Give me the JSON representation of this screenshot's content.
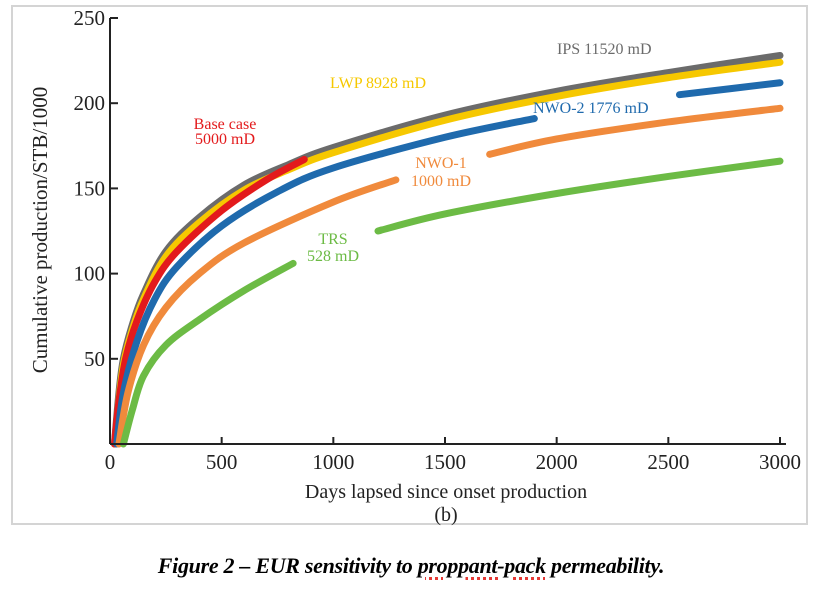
{
  "chart_data": {
    "type": "line",
    "subtitle": "(b)",
    "xlabel": "Days lapsed since onset production",
    "ylabel": "Cumulative production/STB/1000",
    "xlim": [
      0,
      3000
    ],
    "ylim": [
      0,
      250
    ],
    "xticks": [
      "0",
      "500",
      "1000",
      "1500",
      "2000",
      "2500",
      "3000"
    ],
    "yticks": [
      "50",
      "100",
      "150",
      "200",
      "250"
    ],
    "grid": false,
    "legend": "inline labels",
    "series": [
      {
        "name": "IPS 11520 mD",
        "color": "#6b6b6b",
        "segments": [
          [
            [
              20,
              0
            ],
            [
              40,
              30
            ],
            [
              60,
              50
            ],
            [
              100,
              70
            ],
            [
              150,
              88
            ],
            [
              250,
              113
            ],
            [
              400,
              133
            ],
            [
              600,
              152
            ],
            [
              800,
              164
            ],
            [
              1000,
              174
            ],
            [
              1500,
              193
            ],
            [
              2000,
              207
            ],
            [
              2500,
              218
            ],
            [
              3000,
              228
            ]
          ]
        ]
      },
      {
        "name": "LWP 8928 mD",
        "color": "#f6c800",
        "segments": [
          [
            [
              22,
              0
            ],
            [
              42,
              28
            ],
            [
              62,
              48
            ],
            [
              100,
              67
            ],
            [
              150,
              85
            ],
            [
              250,
              110
            ],
            [
              400,
              130
            ],
            [
              600,
              149
            ],
            [
              800,
              161
            ],
            [
              1000,
              171
            ],
            [
              1500,
              190
            ],
            [
              2000,
              204
            ],
            [
              2500,
              215
            ],
            [
              3000,
              224
            ]
          ]
        ]
      },
      {
        "name": "Base case 5000 mD",
        "color": "#e31a1c",
        "segments": [
          [
            [
              20,
              0
            ],
            [
              40,
              25
            ],
            [
              70,
              50
            ],
            [
              120,
              72
            ],
            [
              200,
              95
            ],
            [
              300,
              113
            ],
            [
              500,
              137
            ],
            [
              700,
              155
            ],
            [
              870,
              167
            ]
          ]
        ]
      },
      {
        "name": "NWO-2 1776 mD",
        "color": "#1f6aad",
        "segments": [
          [
            [
              30,
              0
            ],
            [
              60,
              30
            ],
            [
              120,
              60
            ],
            [
              200,
              85
            ],
            [
              300,
              104
            ],
            [
              500,
              128
            ],
            [
              750,
              148
            ],
            [
              1000,
              162
            ],
            [
              1500,
              180
            ],
            [
              1900,
              191
            ]
          ],
          [
            [
              2550,
              205
            ],
            [
              3000,
              212
            ]
          ]
        ]
      },
      {
        "name": "NWO-1 1000 mD",
        "color": "#f08a3c",
        "segments": [
          [
            [
              40,
              0
            ],
            [
              80,
              30
            ],
            [
              150,
              58
            ],
            [
              250,
              80
            ],
            [
              400,
              100
            ],
            [
              600,
              118
            ],
            [
              1000,
              142
            ],
            [
              1280,
              155
            ]
          ],
          [
            [
              1700,
              170
            ],
            [
              2000,
              179
            ],
            [
              2500,
              189
            ],
            [
              3000,
              197
            ]
          ]
        ]
      },
      {
        "name": "TRS 528 mD",
        "color": "#6cbb45",
        "segments": [
          [
            [
              60,
              0
            ],
            [
              100,
              20
            ],
            [
              150,
              40
            ],
            [
              250,
              58
            ],
            [
              400,
              73
            ],
            [
              600,
              90
            ],
            [
              820,
              106
            ]
          ],
          [
            [
              1200,
              125
            ],
            [
              1500,
              135
            ],
            [
              2000,
              147
            ],
            [
              2500,
              157
            ],
            [
              3000,
              166
            ]
          ]
        ]
      }
    ],
    "annotations": {
      "ips": "IPS 11520 mD",
      "lwp": "LWP 8928 mD",
      "base_1": "Base case",
      "base_2": "5000 mD",
      "nwo2": "NWO-2 1776 mD",
      "nwo1_1": "NWO-1",
      "nwo1_2": "1000 mD",
      "trs_1": "TRS",
      "trs_2": "528 mD"
    }
  },
  "caption": {
    "before": "Figure 2 – EUR sensitivity to ",
    "flagged": "proppant-pack",
    "after": " permeability."
  }
}
